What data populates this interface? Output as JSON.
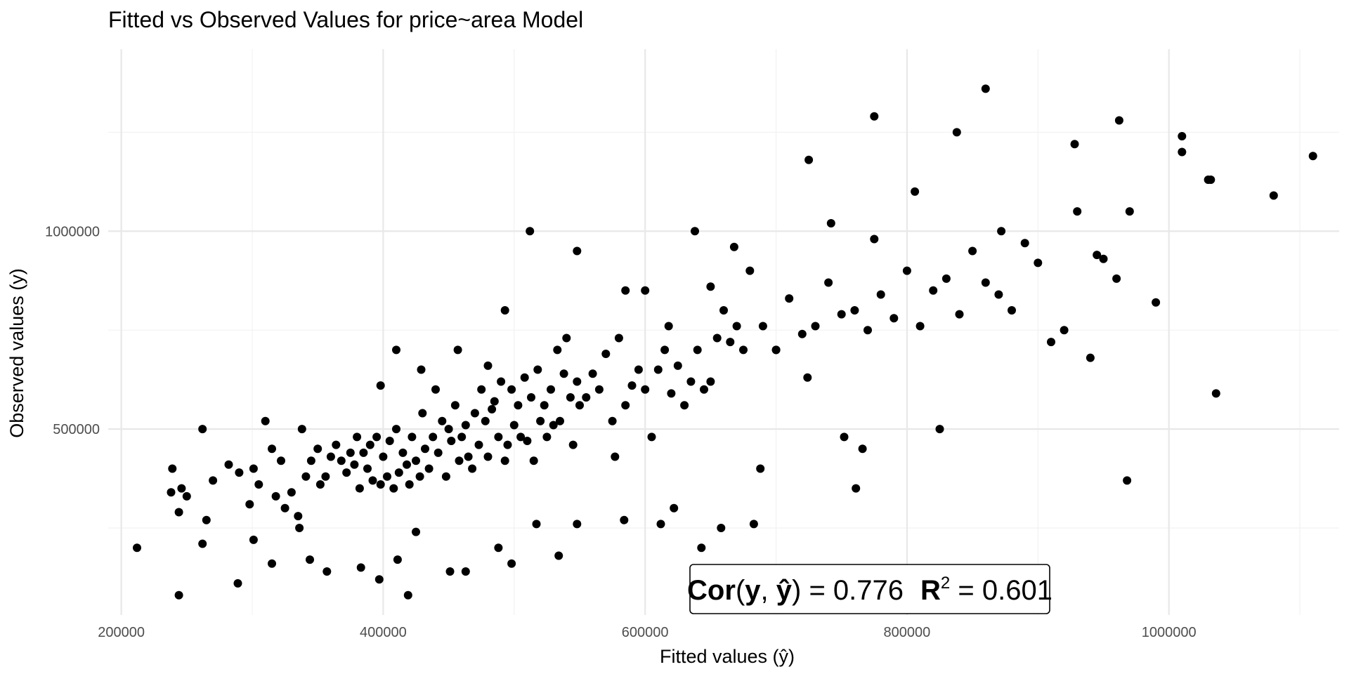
{
  "chart_data": {
    "type": "scatter",
    "title": "Fitted vs Observed Values for price~area Model",
    "xlabel": "Fitted values (ŷ)",
    "ylabel": "Observed values (y)",
    "xlim": [
      190000,
      1130000
    ],
    "ylim": [
      30000,
      1460000
    ],
    "xticks": [
      200000,
      400000,
      600000,
      800000,
      1000000
    ],
    "xtick_labels": [
      "200000",
      "400000",
      "600000",
      "800000",
      "1000000"
    ],
    "yticks": [
      500000,
      1000000
    ],
    "ytick_labels": [
      "500000",
      "1000000"
    ],
    "grid": true,
    "legend": "none",
    "annotation": {
      "cor_label": "Cor",
      "cor_open": "(",
      "cor_y": "y",
      "cor_sep": ", ",
      "cor_yhat": "ŷ",
      "cor_close": ")",
      "cor_eq": " = 0.776",
      "r2_label": "R",
      "r2_sup": "2",
      "r2_eq": " = 0.601"
    },
    "point_color": "#000000",
    "x": [
      212000,
      238000,
      239000,
      244000,
      246000,
      250000,
      262000,
      265000,
      270000,
      282000,
      290000,
      298000,
      301000,
      305000,
      310000,
      315000,
      318000,
      322000,
      325000,
      330000,
      335000,
      338000,
      341000,
      345000,
      350000,
      352000,
      356000,
      360000,
      364000,
      368000,
      372000,
      375000,
      378000,
      380000,
      382000,
      385000,
      388000,
      390000,
      392000,
      395000,
      398000,
      400000,
      403000,
      405000,
      408000,
      410000,
      412000,
      415000,
      418000,
      420000,
      422000,
      425000,
      428000,
      430000,
      432000,
      435000,
      438000,
      440000,
      442000,
      445000,
      448000,
      450000,
      452000,
      455000,
      458000,
      460000,
      463000,
      465000,
      468000,
      470000,
      473000,
      475000,
      478000,
      480000,
      483000,
      485000,
      488000,
      490000,
      493000,
      495000,
      498000,
      500000,
      503000,
      505000,
      508000,
      510000,
      513000,
      515000,
      518000,
      520000,
      523000,
      525000,
      528000,
      530000,
      533000,
      535000,
      538000,
      540000,
      543000,
      545000,
      548000,
      550000,
      555000,
      560000,
      565000,
      570000,
      575000,
      580000,
      585000,
      590000,
      595000,
      600000,
      605000,
      610000,
      615000,
      620000,
      625000,
      630000,
      635000,
      640000,
      645000,
      650000,
      655000,
      660000,
      665000,
      670000,
      675000,
      680000,
      690000,
      700000,
      710000,
      720000,
      730000,
      740000,
      750000,
      760000,
      770000,
      775000,
      780000,
      790000,
      800000,
      810000,
      820000,
      830000,
      840000,
      850000,
      860000,
      870000,
      880000,
      890000,
      900000,
      910000,
      920000,
      930000,
      940000,
      945000,
      950000,
      960000,
      970000,
      990000,
      1010000,
      1030000,
      1080000,
      1110000,
      244000,
      262000,
      289000,
      301000,
      315000,
      336000,
      344000,
      357000,
      383000,
      397000,
      411000,
      419000,
      425000,
      451000,
      463000,
      488000,
      498000,
      517000,
      534000,
      548000,
      577000,
      584000,
      612000,
      622000,
      643000,
      658000,
      683000,
      688000,
      724000,
      752000,
      761000,
      766000,
      825000,
      860000,
      968000,
      1036000,
      398000,
      410000,
      429000,
      457000,
      480000,
      493000,
      512000,
      548000,
      585000,
      600000,
      618000,
      638000,
      650000,
      668000,
      700000,
      725000,
      742000,
      775000,
      806000,
      838000,
      872000,
      928000,
      962000,
      1010000,
      1032000
    ],
    "y": [
      200000,
      340000,
      400000,
      290000,
      350000,
      330000,
      500000,
      270000,
      370000,
      410000,
      390000,
      310000,
      400000,
      360000,
      520000,
      450000,
      330000,
      420000,
      300000,
      340000,
      280000,
      500000,
      380000,
      420000,
      450000,
      360000,
      380000,
      430000,
      460000,
      420000,
      390000,
      440000,
      410000,
      480000,
      350000,
      440000,
      400000,
      460000,
      370000,
      480000,
      360000,
      430000,
      380000,
      470000,
      350000,
      500000,
      390000,
      440000,
      410000,
      360000,
      480000,
      420000,
      380000,
      540000,
      450000,
      400000,
      480000,
      600000,
      440000,
      520000,
      380000,
      500000,
      470000,
      560000,
      420000,
      480000,
      510000,
      430000,
      400000,
      540000,
      460000,
      600000,
      520000,
      430000,
      550000,
      570000,
      480000,
      620000,
      420000,
      460000,
      600000,
      510000,
      560000,
      480000,
      630000,
      470000,
      580000,
      420000,
      650000,
      520000,
      560000,
      480000,
      600000,
      510000,
      700000,
      520000,
      640000,
      730000,
      580000,
      460000,
      620000,
      560000,
      580000,
      640000,
      600000,
      690000,
      520000,
      730000,
      560000,
      610000,
      650000,
      600000,
      480000,
      650000,
      700000,
      590000,
      660000,
      560000,
      620000,
      700000,
      600000,
      620000,
      730000,
      800000,
      720000,
      760000,
      700000,
      900000,
      760000,
      700000,
      830000,
      740000,
      760000,
      870000,
      790000,
      800000,
      750000,
      980000,
      840000,
      780000,
      900000,
      760000,
      850000,
      880000,
      790000,
      950000,
      870000,
      840000,
      800000,
      970000,
      920000,
      720000,
      750000,
      1050000,
      680000,
      940000,
      930000,
      880000,
      1050000,
      820000,
      1200000,
      1130000,
      1090000,
      1190000,
      80000,
      210000,
      110000,
      220000,
      160000,
      250000,
      170000,
      140000,
      150000,
      120000,
      170000,
      80000,
      240000,
      140000,
      140000,
      200000,
      160000,
      260000,
      180000,
      260000,
      430000,
      270000,
      260000,
      300000,
      200000,
      250000,
      260000,
      400000,
      630000,
      480000,
      350000,
      450000,
      500000,
      1360000,
      370000,
      590000,
      610000,
      700000,
      650000,
      700000,
      660000,
      800000,
      1000000,
      950000,
      850000,
      850000,
      760000,
      1000000,
      860000,
      960000,
      700000,
      1180000,
      1020000,
      1290000,
      1100000,
      1250000,
      1000000,
      1220000,
      1280000,
      1240000,
      1130000
    ]
  }
}
